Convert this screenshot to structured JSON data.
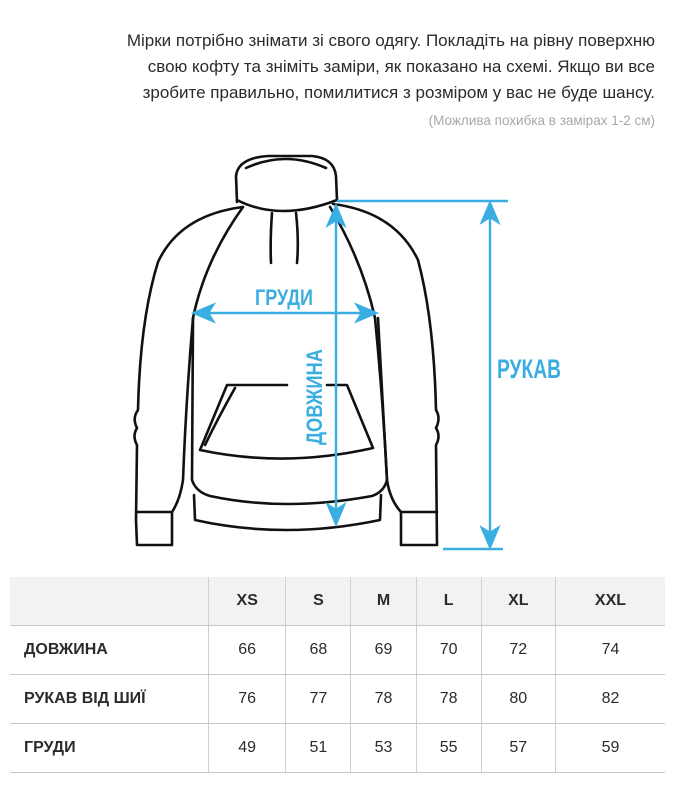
{
  "intro": {
    "lines": [
      "Мірки потрібно знімати зі свого одягу. Покладіть на рівну поверхню",
      "свою кофту та зніміть заміри, як показано на схемі. Якщо ви все",
      "зробите правильно, помилитися з розміром у вас не буде шансу."
    ],
    "note": "(Можлива похибка в замірах 1-2 см)"
  },
  "diagram": {
    "accent_color": "#3aaee0",
    "labels": {
      "chest": "ГРУДИ",
      "length": "ДОВЖИНА",
      "sleeve": "РУКАВ"
    }
  },
  "size_table": {
    "headers": [
      "",
      "XS",
      "S",
      "M",
      "L",
      "XL",
      "XXL"
    ],
    "rows": [
      {
        "label": "ДОВЖИНА",
        "values": [
          "66",
          "68",
          "69",
          "70",
          "72",
          "74"
        ]
      },
      {
        "label": "РУКАВ ВІД ШИЇ",
        "values": [
          "76",
          "77",
          "78",
          "78",
          "80",
          "82"
        ]
      },
      {
        "label": "ГРУДИ",
        "values": [
          "49",
          "51",
          "53",
          "55",
          "57",
          "59"
        ]
      }
    ]
  }
}
